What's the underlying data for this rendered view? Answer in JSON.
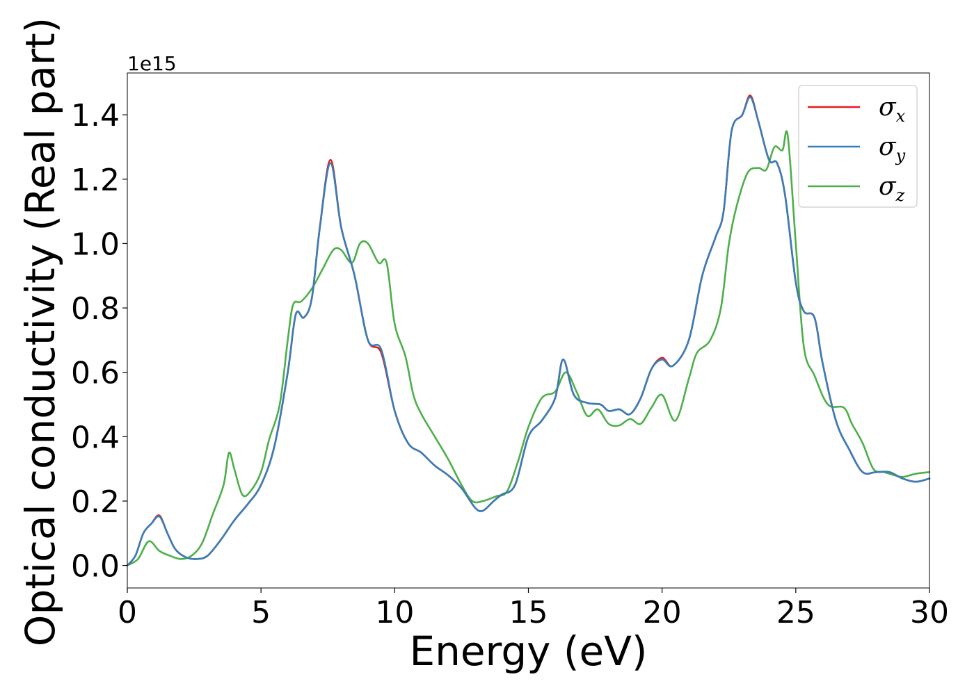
{
  "chart_data": {
    "type": "line",
    "xlabel": "Energy (eV)",
    "ylabel": "Optical conductivity (Real part)",
    "y_offset_label": "1e15",
    "xlim": [
      0,
      30
    ],
    "ylim": [
      -0.07,
      1.53
    ],
    "x_ticks": [
      0,
      5,
      10,
      15,
      20,
      25,
      30
    ],
    "x_tick_labels": [
      "0",
      "5",
      "10",
      "15",
      "20",
      "25",
      "30"
    ],
    "y_ticks": [
      0.0,
      0.2,
      0.4,
      0.6,
      0.8,
      1.0,
      1.2,
      1.4
    ],
    "y_tick_labels": [
      "0.0",
      "0.2",
      "0.4",
      "0.6",
      "0.8",
      "1.0",
      "1.2",
      "1.4"
    ],
    "grid": false,
    "legend": {
      "position": "top-right"
    },
    "series": [
      {
        "name": "σx",
        "symbol": "σ",
        "subscript": "x",
        "color": "#e41a1c",
        "points": [
          [
            0,
            0
          ],
          [
            0.3,
            0.03
          ],
          [
            0.6,
            0.1
          ],
          [
            0.9,
            0.13
          ],
          [
            1.2,
            0.155
          ],
          [
            1.5,
            0.1
          ],
          [
            1.8,
            0.05
          ],
          [
            2.2,
            0.025
          ],
          [
            2.6,
            0.02
          ],
          [
            3.0,
            0.03
          ],
          [
            3.5,
            0.08
          ],
          [
            4.0,
            0.14
          ],
          [
            4.5,
            0.19
          ],
          [
            5.0,
            0.25
          ],
          [
            5.5,
            0.37
          ],
          [
            6.0,
            0.6
          ],
          [
            6.3,
            0.78
          ],
          [
            6.6,
            0.77
          ],
          [
            6.9,
            0.83
          ],
          [
            7.2,
            1.05
          ],
          [
            7.6,
            1.26
          ],
          [
            8.0,
            1.05
          ],
          [
            8.5,
            0.9
          ],
          [
            9.0,
            0.7
          ],
          [
            9.5,
            0.66
          ],
          [
            10.0,
            0.48
          ],
          [
            10.5,
            0.38
          ],
          [
            11.0,
            0.35
          ],
          [
            11.5,
            0.31
          ],
          [
            12.0,
            0.28
          ],
          [
            12.5,
            0.24
          ],
          [
            13.0,
            0.18
          ],
          [
            13.3,
            0.17
          ],
          [
            13.7,
            0.2
          ],
          [
            14.0,
            0.22
          ],
          [
            14.5,
            0.25
          ],
          [
            15.0,
            0.4
          ],
          [
            15.5,
            0.45
          ],
          [
            16.0,
            0.52
          ],
          [
            16.3,
            0.64
          ],
          [
            16.7,
            0.53
          ],
          [
            17.2,
            0.505
          ],
          [
            17.7,
            0.5
          ],
          [
            18.0,
            0.48
          ],
          [
            18.4,
            0.485
          ],
          [
            18.8,
            0.47
          ],
          [
            19.2,
            0.52
          ],
          [
            19.6,
            0.61
          ],
          [
            20.0,
            0.645
          ],
          [
            20.4,
            0.62
          ],
          [
            21.0,
            0.7
          ],
          [
            21.5,
            0.9
          ],
          [
            22.0,
            1.02
          ],
          [
            22.3,
            1.1
          ],
          [
            22.6,
            1.35
          ],
          [
            23.0,
            1.4
          ],
          [
            23.3,
            1.46
          ],
          [
            23.6,
            1.38
          ],
          [
            24.0,
            1.26
          ],
          [
            24.3,
            1.25
          ],
          [
            24.6,
            1.15
          ],
          [
            25.0,
            0.88
          ],
          [
            25.3,
            0.79
          ],
          [
            25.7,
            0.77
          ],
          [
            26.0,
            0.63
          ],
          [
            26.5,
            0.45
          ],
          [
            27.0,
            0.36
          ],
          [
            27.5,
            0.29
          ],
          [
            28.0,
            0.29
          ],
          [
            28.5,
            0.29
          ],
          [
            29.0,
            0.27
          ],
          [
            29.5,
            0.26
          ],
          [
            30.0,
            0.27
          ]
        ]
      },
      {
        "name": "σy",
        "symbol": "σ",
        "subscript": "y",
        "color": "#377eb8",
        "points": [
          [
            0,
            0
          ],
          [
            0.3,
            0.03
          ],
          [
            0.6,
            0.1
          ],
          [
            0.9,
            0.13
          ],
          [
            1.2,
            0.152
          ],
          [
            1.5,
            0.1
          ],
          [
            1.8,
            0.05
          ],
          [
            2.2,
            0.025
          ],
          [
            2.6,
            0.02
          ],
          [
            3.0,
            0.03
          ],
          [
            3.5,
            0.08
          ],
          [
            4.0,
            0.14
          ],
          [
            4.5,
            0.19
          ],
          [
            5.0,
            0.25
          ],
          [
            5.5,
            0.37
          ],
          [
            6.0,
            0.6
          ],
          [
            6.3,
            0.78
          ],
          [
            6.6,
            0.77
          ],
          [
            6.9,
            0.83
          ],
          [
            7.2,
            1.05
          ],
          [
            7.6,
            1.25
          ],
          [
            8.0,
            1.05
          ],
          [
            8.5,
            0.9
          ],
          [
            9.0,
            0.7
          ],
          [
            9.5,
            0.67
          ],
          [
            10.0,
            0.48
          ],
          [
            10.5,
            0.38
          ],
          [
            11.0,
            0.35
          ],
          [
            11.5,
            0.31
          ],
          [
            12.0,
            0.28
          ],
          [
            12.5,
            0.24
          ],
          [
            13.0,
            0.18
          ],
          [
            13.3,
            0.17
          ],
          [
            13.7,
            0.2
          ],
          [
            14.0,
            0.22
          ],
          [
            14.5,
            0.25
          ],
          [
            15.0,
            0.4
          ],
          [
            15.5,
            0.45
          ],
          [
            16.0,
            0.52
          ],
          [
            16.3,
            0.64
          ],
          [
            16.7,
            0.53
          ],
          [
            17.2,
            0.505
          ],
          [
            17.7,
            0.5
          ],
          [
            18.0,
            0.48
          ],
          [
            18.4,
            0.485
          ],
          [
            18.8,
            0.47
          ],
          [
            19.2,
            0.52
          ],
          [
            19.6,
            0.61
          ],
          [
            20.0,
            0.64
          ],
          [
            20.4,
            0.62
          ],
          [
            21.0,
            0.7
          ],
          [
            21.5,
            0.9
          ],
          [
            22.0,
            1.02
          ],
          [
            22.3,
            1.1
          ],
          [
            22.6,
            1.35
          ],
          [
            23.0,
            1.4
          ],
          [
            23.3,
            1.455
          ],
          [
            23.6,
            1.38
          ],
          [
            24.0,
            1.26
          ],
          [
            24.3,
            1.25
          ],
          [
            24.6,
            1.15
          ],
          [
            25.0,
            0.88
          ],
          [
            25.3,
            0.79
          ],
          [
            25.7,
            0.77
          ],
          [
            26.0,
            0.63
          ],
          [
            26.5,
            0.45
          ],
          [
            27.0,
            0.36
          ],
          [
            27.5,
            0.29
          ],
          [
            28.0,
            0.29
          ],
          [
            28.5,
            0.29
          ],
          [
            29.0,
            0.27
          ],
          [
            29.5,
            0.26
          ],
          [
            30.0,
            0.27
          ]
        ]
      },
      {
        "name": "σz",
        "symbol": "σ",
        "subscript": "z",
        "color": "#4daf4a",
        "points": [
          [
            0,
            0
          ],
          [
            0.4,
            0.02
          ],
          [
            0.8,
            0.075
          ],
          [
            1.2,
            0.045
          ],
          [
            1.6,
            0.03
          ],
          [
            2.0,
            0.02
          ],
          [
            2.4,
            0.03
          ],
          [
            2.8,
            0.07
          ],
          [
            3.2,
            0.16
          ],
          [
            3.6,
            0.25
          ],
          [
            3.8,
            0.35
          ],
          [
            4.0,
            0.3
          ],
          [
            4.3,
            0.22
          ],
          [
            4.6,
            0.23
          ],
          [
            5.0,
            0.29
          ],
          [
            5.3,
            0.39
          ],
          [
            5.7,
            0.5
          ],
          [
            6.0,
            0.7
          ],
          [
            6.2,
            0.81
          ],
          [
            6.5,
            0.82
          ],
          [
            6.9,
            0.86
          ],
          [
            7.3,
            0.92
          ],
          [
            7.7,
            0.98
          ],
          [
            8.0,
            0.98
          ],
          [
            8.4,
            0.94
          ],
          [
            8.7,
            1.0
          ],
          [
            9.0,
            1.0
          ],
          [
            9.4,
            0.94
          ],
          [
            9.7,
            0.94
          ],
          [
            10.0,
            0.75
          ],
          [
            10.4,
            0.65
          ],
          [
            10.7,
            0.53
          ],
          [
            11.0,
            0.47
          ],
          [
            11.5,
            0.4
          ],
          [
            12.0,
            0.33
          ],
          [
            12.5,
            0.25
          ],
          [
            12.9,
            0.2
          ],
          [
            13.3,
            0.2
          ],
          [
            13.8,
            0.215
          ],
          [
            14.2,
            0.23
          ],
          [
            14.6,
            0.32
          ],
          [
            15.0,
            0.43
          ],
          [
            15.5,
            0.52
          ],
          [
            16.0,
            0.54
          ],
          [
            16.4,
            0.6
          ],
          [
            16.8,
            0.54
          ],
          [
            17.2,
            0.465
          ],
          [
            17.6,
            0.485
          ],
          [
            18.0,
            0.44
          ],
          [
            18.4,
            0.435
          ],
          [
            18.8,
            0.455
          ],
          [
            19.2,
            0.44
          ],
          [
            19.6,
            0.49
          ],
          [
            20.0,
            0.53
          ],
          [
            20.5,
            0.45
          ],
          [
            21.0,
            0.58
          ],
          [
            21.3,
            0.66
          ],
          [
            21.8,
            0.7
          ],
          [
            22.2,
            0.8
          ],
          [
            22.5,
            1.0
          ],
          [
            22.8,
            1.12
          ],
          [
            23.2,
            1.22
          ],
          [
            23.6,
            1.235
          ],
          [
            23.9,
            1.23
          ],
          [
            24.2,
            1.3
          ],
          [
            24.5,
            1.29
          ],
          [
            24.7,
            1.335
          ],
          [
            25.0,
            1.0
          ],
          [
            25.3,
            0.68
          ],
          [
            25.7,
            0.59
          ],
          [
            26.2,
            0.5
          ],
          [
            26.8,
            0.49
          ],
          [
            27.1,
            0.44
          ],
          [
            27.5,
            0.38
          ],
          [
            27.9,
            0.3
          ],
          [
            28.3,
            0.29
          ],
          [
            28.7,
            0.28
          ],
          [
            29.0,
            0.275
          ],
          [
            29.5,
            0.285
          ],
          [
            30.0,
            0.29
          ]
        ]
      }
    ]
  }
}
